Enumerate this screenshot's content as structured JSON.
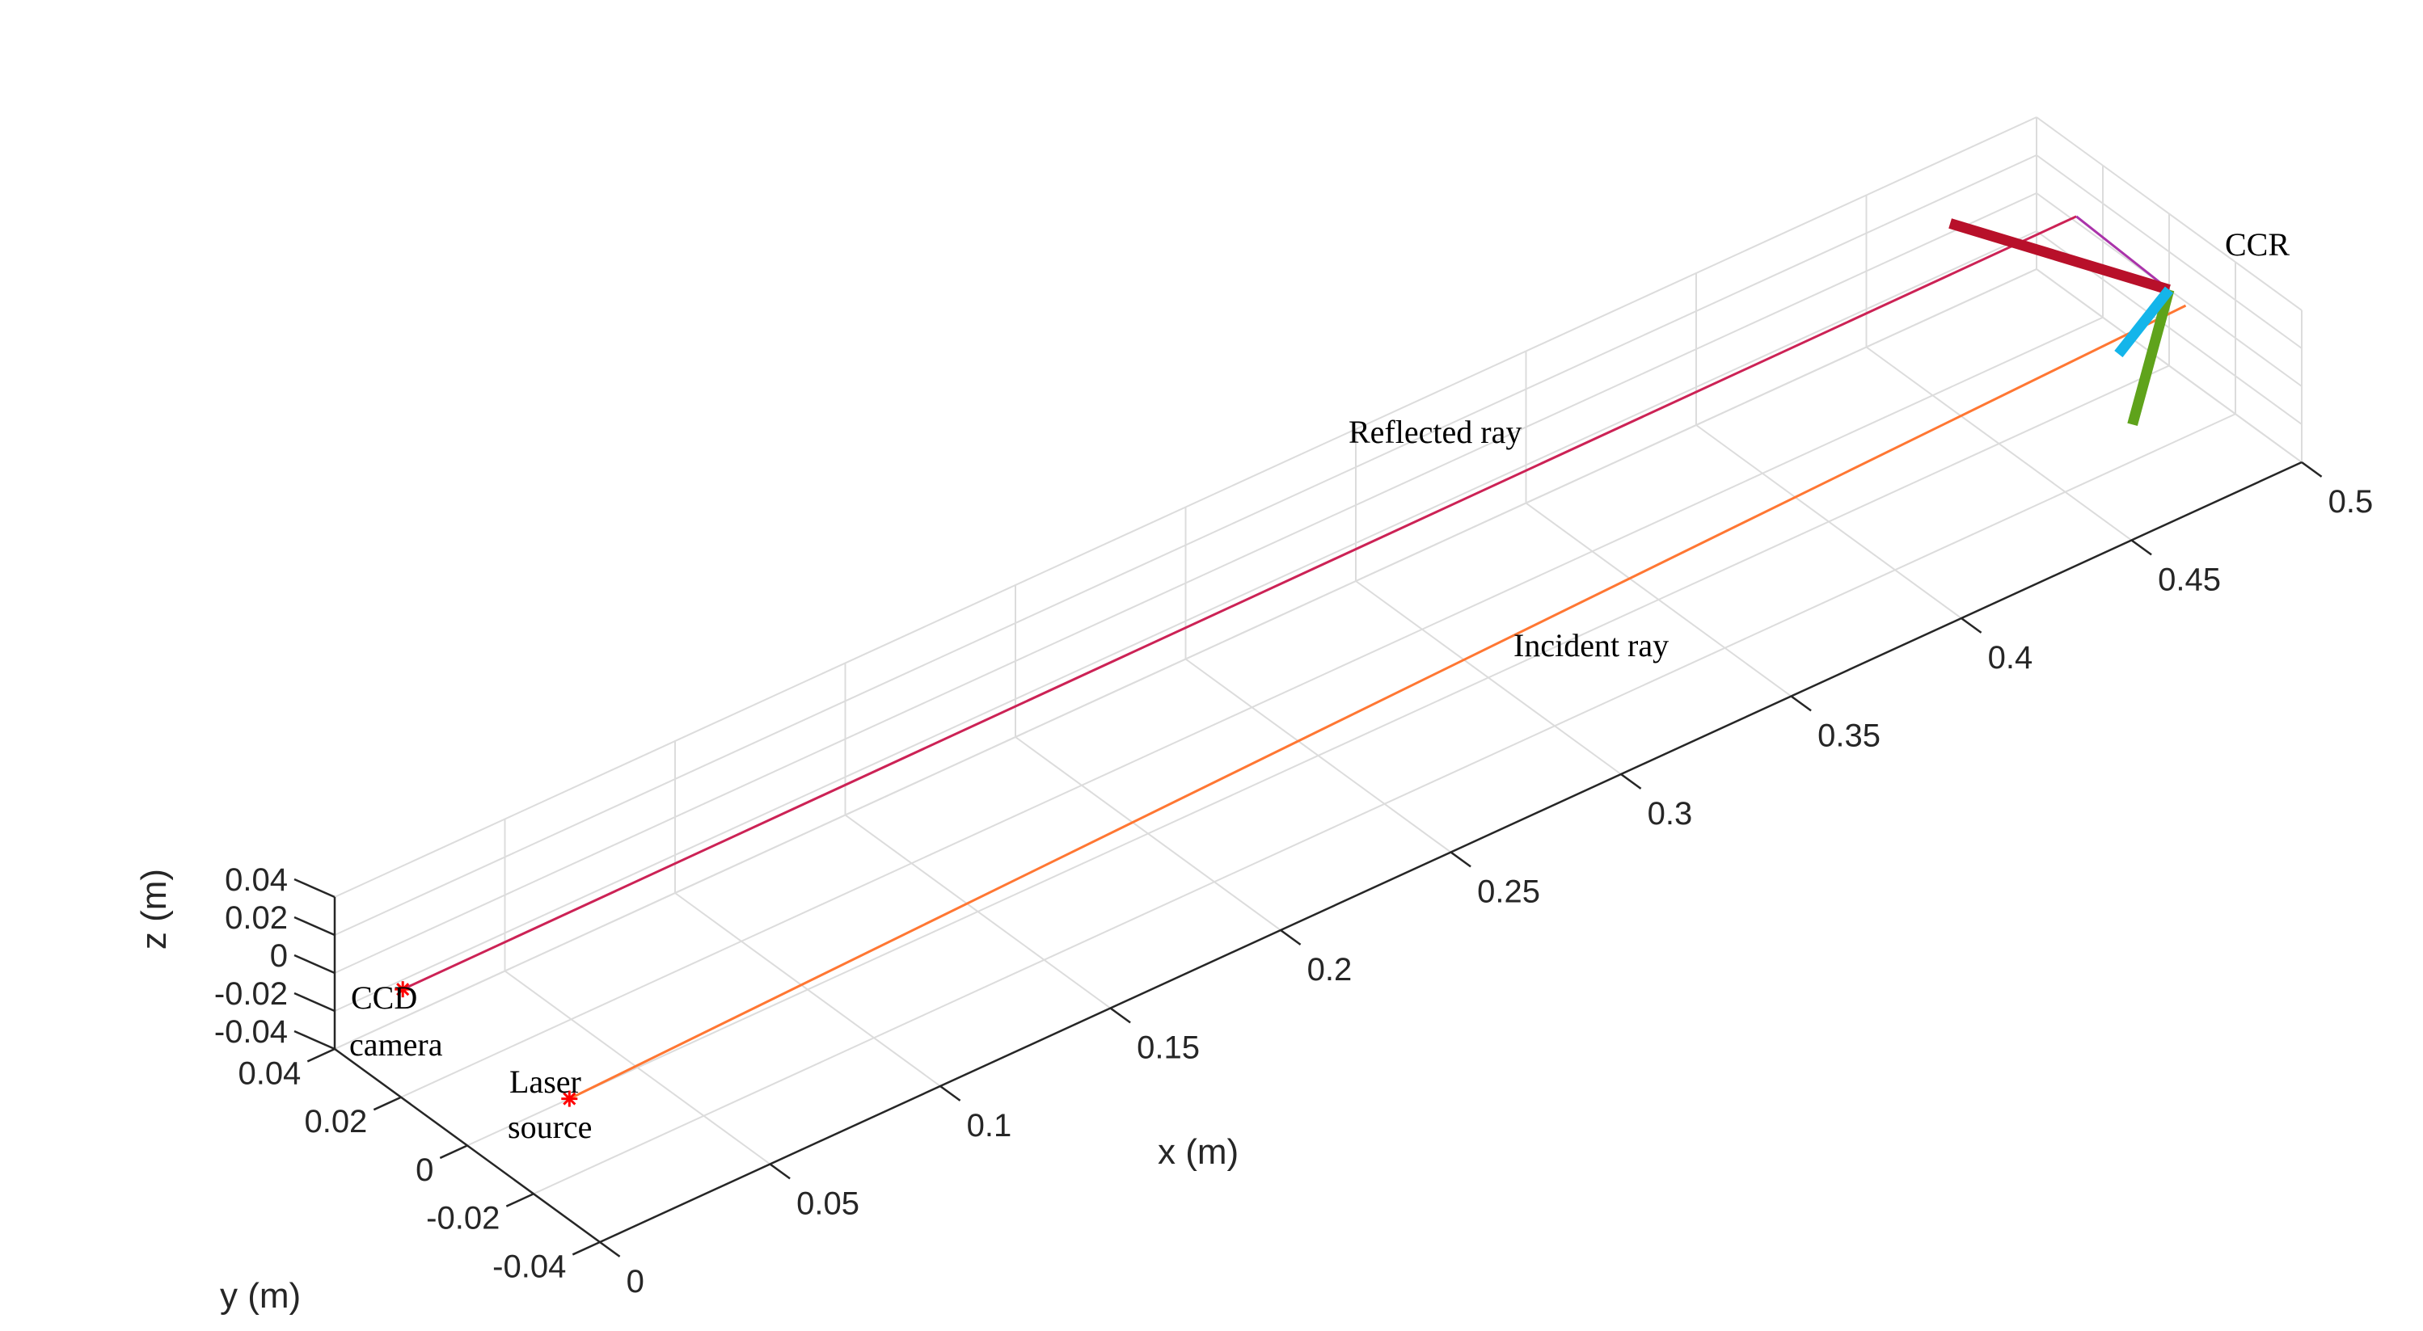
{
  "chart_data": {
    "type": "line3d",
    "title": "",
    "xlabel": "x (m)",
    "ylabel": "y (m)",
    "zlabel": "z (m)",
    "xlim": [
      0,
      0.5
    ],
    "ylim": [
      -0.04,
      0.04
    ],
    "zlim": [
      -0.04,
      0.04
    ],
    "x_ticks": [
      "0",
      "0.05",
      "0.1",
      "0.15",
      "0.2",
      "0.25",
      "0.3",
      "0.35",
      "0.4",
      "0.45",
      "0.5"
    ],
    "y_ticks": [
      "0.04",
      "0.02",
      "0",
      "-0.02",
      "-0.04"
    ],
    "z_ticks": [
      "0.04",
      "0.02",
      "0",
      "-0.02",
      "-0.04"
    ],
    "grid": true,
    "series": [
      {
        "color": "#cc2255",
        "points": [
          [
            0.02,
            0.04,
            -0.025
          ],
          [
            0.5,
            0.028,
            0.003
          ]
        ]
      },
      {
        "color": "#ff7733",
        "points": [
          [
            0.03,
            0.0,
            -0.04
          ],
          [
            0.5,
            -0.005,
            -0.002
          ]
        ]
      },
      {
        "color": "#aa33aa",
        "points": [
          [
            0.5,
            0.028,
            0.003
          ],
          [
            0.5,
            0.0,
            0.0
          ]
        ]
      }
    ],
    "ccr_edges": [
      {
        "color": "#b8102a",
        "dir": "z"
      },
      {
        "color": "#5fa31b",
        "dir": "y"
      },
      {
        "color": "#14b5ea",
        "dir": "x"
      }
    ],
    "markers": [
      {
        "label": "CCD camera",
        "color": "#ff0000"
      },
      {
        "label": "Laser source",
        "color": "#ff0000"
      }
    ],
    "annotations": {
      "reflected": "Reflected ray",
      "incident": "Incident ray",
      "ccr": "CCR",
      "ccd_line1": "CCD",
      "ccd_line2": "camera",
      "laser_line1": "Laser",
      "laser_line2": "source"
    }
  }
}
